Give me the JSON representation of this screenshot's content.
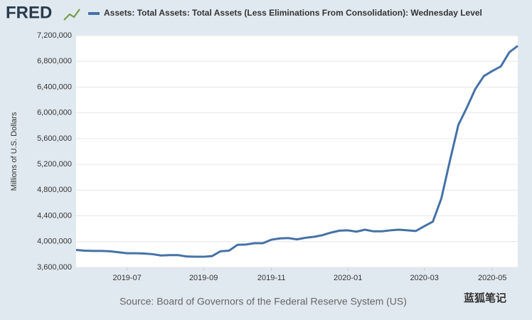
{
  "logo": "FRED",
  "watermark": "蓝狐笔记",
  "chart_data": {
    "type": "line",
    "title": "Assets: Total Assets: Total Assets (Less Eliminations From Consolidation): Wednesday Level",
    "y_label": "Millions of U.S. Dollars",
    "source": "Source: Board of Governors of the Federal Reserve System (US)",
    "categories": [
      null,
      null,
      null,
      null,
      null,
      null,
      "2019-07",
      null,
      null,
      null,
      null,
      null,
      null,
      null,
      null,
      "2019-09",
      null,
      null,
      null,
      null,
      null,
      null,
      null,
      "2019-11",
      null,
      null,
      null,
      null,
      null,
      null,
      null,
      null,
      "2020-01",
      null,
      null,
      null,
      null,
      null,
      null,
      null,
      null,
      "2020-03",
      null,
      null,
      null,
      null,
      null,
      null,
      null,
      "2020-05",
      null,
      null,
      null
    ],
    "series": [
      {
        "name": "Assets: Total Assets: Total Assets (Less Eliminations From Consolidation): Wednesday Level",
        "color": "#4572a7",
        "values": [
          3870000,
          3860000,
          3855000,
          3855000,
          3850000,
          3835000,
          3820000,
          3820000,
          3815000,
          3805000,
          3785000,
          3790000,
          3790000,
          3770000,
          3765000,
          3765000,
          3775000,
          3850000,
          3860000,
          3950000,
          3955000,
          3975000,
          3975000,
          4030000,
          4050000,
          4055000,
          4035000,
          4060000,
          4075000,
          4100000,
          4140000,
          4170000,
          4175000,
          4155000,
          4185000,
          4160000,
          4160000,
          4175000,
          4185000,
          4175000,
          4165000,
          4240000,
          4310000,
          4670000,
          5250000,
          5810000,
          6080000,
          6370000,
          6570000,
          6650000,
          6720000,
          6940000,
          7040000
        ]
      }
    ],
    "ylim": [
      3600000,
      7200000
    ],
    "yticks": [
      {
        "value": 3600000,
        "label": "3,600,000"
      },
      {
        "value": 4000000,
        "label": "4,000,000"
      },
      {
        "value": 4400000,
        "label": "4,400,000"
      },
      {
        "value": 4800000,
        "label": "4,800,000"
      },
      {
        "value": 5200000,
        "label": "5,200,000"
      },
      {
        "value": 5600000,
        "label": "5,600,000"
      },
      {
        "value": 6000000,
        "label": "6,000,000"
      },
      {
        "value": 6400000,
        "label": "6,400,000"
      },
      {
        "value": 6800000,
        "label": "6,800,000"
      },
      {
        "value": 7200000,
        "label": "7,200,000"
      }
    ],
    "grid": true
  }
}
